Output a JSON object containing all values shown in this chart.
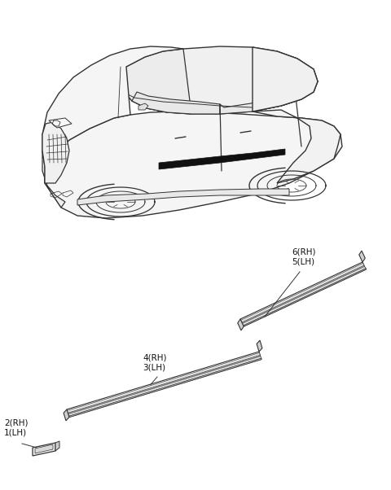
{
  "background_color": "#ffffff",
  "line_color": "#333333",
  "label_color": "#111111",
  "font_size": 7.5,
  "parts": [
    {
      "label1": "2(RH)",
      "label2": "1(LH)"
    },
    {
      "label1": "4(RH)",
      "label2": "3(LH)"
    },
    {
      "label1": "6(RH)",
      "label2": "5(LH)"
    }
  ],
  "car": {
    "body_color": "#ffffff",
    "edge_color": "#333333"
  }
}
